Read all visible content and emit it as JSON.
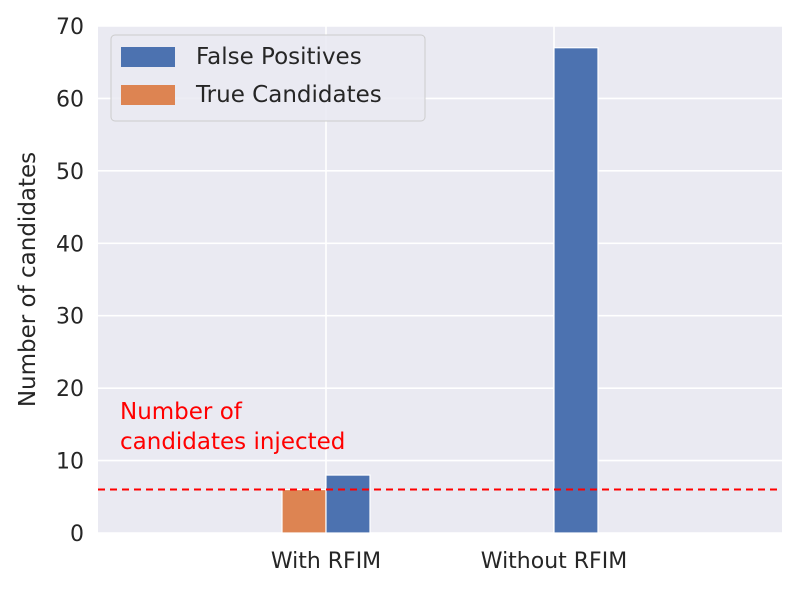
{
  "chart_data": {
    "type": "bar",
    "categories": [
      "With RFIM",
      "Without RFIM"
    ],
    "series": [
      {
        "name": "True Candidates",
        "values": [
          6,
          0
        ],
        "color": "#dd8452"
      },
      {
        "name": "False Positives",
        "values": [
          8,
          67
        ],
        "color": "#4c72b0"
      }
    ],
    "legend_order": [
      "False Positives",
      "True Candidates"
    ],
    "legend_position": "top-left",
    "ylabel": "Number of candidates",
    "xlabel": "",
    "ylim": [
      0,
      70
    ],
    "yticks": [
      0,
      10,
      20,
      30,
      40,
      50,
      60,
      70
    ],
    "grid": true,
    "reference_line": {
      "y": 6,
      "color": "#ff0000",
      "style": "dashed"
    },
    "annotation": {
      "lines": [
        "Number of",
        "candidates injected"
      ],
      "color": "#ff0000"
    },
    "background": "#eaeaf2"
  }
}
